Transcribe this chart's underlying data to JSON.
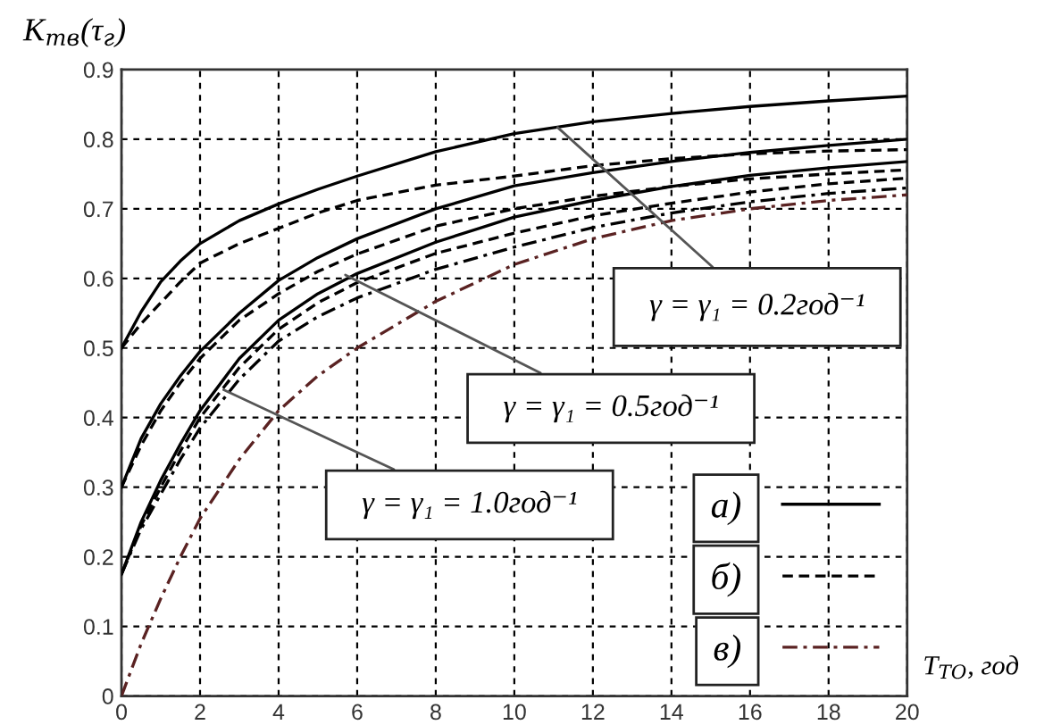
{
  "chart_data": {
    "type": "line",
    "xlabel": "T$_{ТО}$, год",
    "ylabel": "K$_{тв}$(τ$_{г}$)",
    "x": [
      0,
      0.5,
      1,
      1.5,
      2,
      3,
      4,
      5,
      6,
      8,
      10,
      12,
      14,
      16,
      18,
      20
    ],
    "series": [
      {
        "name": "а)",
        "color": "#000000",
        "line_style": "solid",
        "values": [
          0.5,
          0.552,
          0.595,
          0.625,
          0.65,
          0.683,
          0.707,
          0.728,
          0.747,
          0.782,
          0.808,
          0.825,
          0.837,
          0.847,
          0.855,
          0.862
        ]
      },
      {
        "name": "б)",
        "color": "#000000",
        "line_style": "dashed",
        "values": [
          0.5,
          0.535,
          0.565,
          0.595,
          0.622,
          0.65,
          0.672,
          0.694,
          0.712,
          0.734,
          0.747,
          0.762,
          0.772,
          0.779,
          0.783,
          0.785
        ]
      },
      {
        "color": "#000000",
        "line_style": "solid",
        "values": [
          0.3,
          0.37,
          0.42,
          0.46,
          0.495,
          0.55,
          0.597,
          0.63,
          0.657,
          0.7,
          0.733,
          0.752,
          0.768,
          0.781,
          0.791,
          0.8
        ]
      },
      {
        "color": "#000000",
        "line_style": "dashed",
        "values": [
          0.3,
          0.36,
          0.41,
          0.45,
          0.485,
          0.54,
          0.578,
          0.61,
          0.635,
          0.675,
          0.7,
          0.718,
          0.732,
          0.743,
          0.75,
          0.756
        ]
      },
      {
        "color": "#000000",
        "line_style": "solid",
        "values": [
          0.175,
          0.25,
          0.31,
          0.362,
          0.41,
          0.485,
          0.54,
          0.578,
          0.607,
          0.652,
          0.688,
          0.712,
          0.732,
          0.748,
          0.759,
          0.768
        ]
      },
      {
        "color": "#000000",
        "line_style": "dashed",
        "values": [
          0.175,
          0.245,
          0.3,
          0.352,
          0.4,
          0.472,
          0.527,
          0.565,
          0.594,
          0.636,
          0.665,
          0.69,
          0.708,
          0.724,
          0.736,
          0.744
        ]
      },
      {
        "color": "#000000",
        "line_style": "dashdot",
        "values": [
          0.175,
          0.24,
          0.29,
          0.34,
          0.385,
          0.455,
          0.51,
          0.545,
          0.572,
          0.613,
          0.645,
          0.673,
          0.694,
          0.71,
          0.722,
          0.73
        ]
      },
      {
        "name": "в)",
        "color": "#5a2222",
        "line_style": "dashdot",
        "values": [
          0.0,
          0.075,
          0.14,
          0.2,
          0.255,
          0.34,
          0.41,
          0.46,
          0.5,
          0.567,
          0.62,
          0.657,
          0.683,
          0.7,
          0.712,
          0.72
        ]
      }
    ],
    "xlim": [
      0,
      20
    ],
    "ylim": [
      0,
      0.9
    ],
    "xticks": [
      0,
      2,
      4,
      6,
      8,
      10,
      12,
      14,
      16,
      18,
      20
    ],
    "yticks": [
      0,
      0.1,
      0.2,
      0.3,
      0.4,
      0.5,
      0.6,
      0.7,
      0.8,
      0.9
    ],
    "grid": true,
    "legend": "bottom right",
    "annotations": [
      {
        "text": "γ = γ₁ = 0.2год⁻¹",
        "x": 11.1,
        "y": 0.817
      },
      {
        "text": "γ = γ₁ = 0.5год⁻¹",
        "x": 5.7,
        "y": 0.605
      },
      {
        "text": "γ = γ₁ = 1.0год⁻¹",
        "x": 2.6,
        "y": 0.44
      }
    ]
  }
}
